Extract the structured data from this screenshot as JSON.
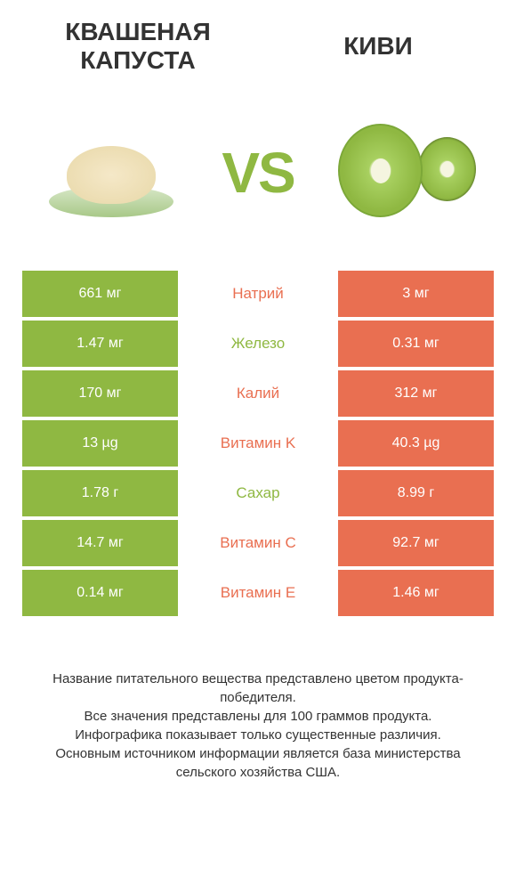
{
  "header": {
    "left_title": "КВАШЕНАЯ КАПУСТА",
    "right_title": "КИВИ",
    "vs": "VS"
  },
  "colors": {
    "left_bg": "#8fb842",
    "right_bg": "#e96f51",
    "left_text_winner": "#e96f51",
    "right_text_winner": "#8fb842"
  },
  "rows": [
    {
      "left": "661 мг",
      "label": "Натрий",
      "right": "3 мг",
      "winner": "left"
    },
    {
      "left": "1.47 мг",
      "label": "Железо",
      "right": "0.31 мг",
      "winner": "right"
    },
    {
      "left": "170 мг",
      "label": "Калий",
      "right": "312 мг",
      "winner": "left"
    },
    {
      "left": "13 µg",
      "label": "Витамин K",
      "right": "40.3 µg",
      "winner": "left"
    },
    {
      "left": "1.78 г",
      "label": "Сахар",
      "right": "8.99 г",
      "winner": "right"
    },
    {
      "left": "14.7 мг",
      "label": "Витамин C",
      "right": "92.7 мг",
      "winner": "left"
    },
    {
      "left": "0.14 мг",
      "label": "Витамин E",
      "right": "1.46 мг",
      "winner": "left"
    }
  ],
  "footer": {
    "line1": "Название питательного вещества представлено цветом продукта-победителя.",
    "line2": "Все значения представлены для 100 граммов продукта.",
    "line3": "Инфографика показывает только существенные различия.",
    "line4": "Основным источником информации является база министерства сельского хозяйства США."
  }
}
